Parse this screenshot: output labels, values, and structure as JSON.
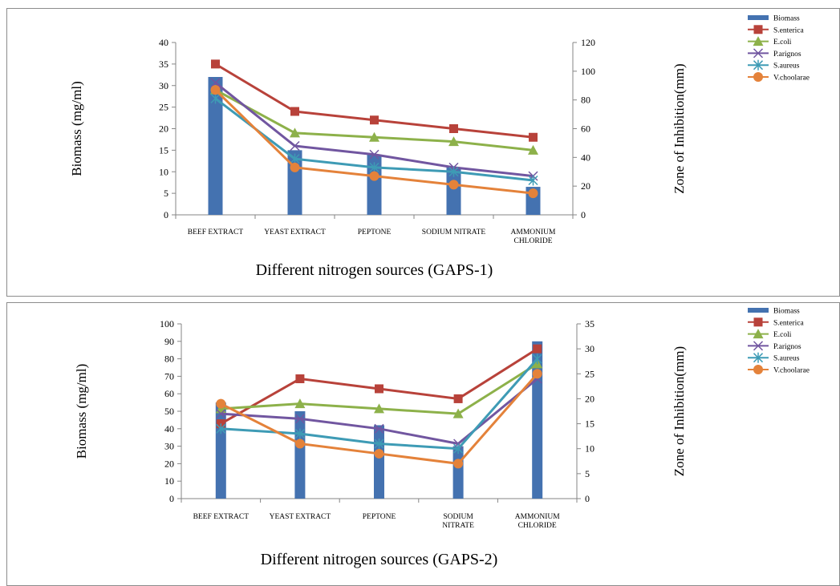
{
  "chart_data": [
    {
      "type": "bar",
      "categories": [
        "BEEF EXTRACT",
        "YEAST EXTRACT",
        "PEPTONE",
        "SODIUM NITRATE",
        "AMMONIUM CHLORIDE"
      ],
      "category_lines": [
        [
          "BEEF EXTRACT"
        ],
        [
          "YEAST EXTRACT"
        ],
        [
          "PEPTONE"
        ],
        [
          "SODIUM  NITRATE"
        ],
        [
          "AMMONIUM",
          "CHLORIDE"
        ]
      ],
      "xlabel": "Different  nitrogen sources (GAPS-1)",
      "ylabel": "Biomass (mg/ml)",
      "y2label": "Zone of  Inhibition(mm)",
      "ylim": [
        0,
        40
      ],
      "y_ticks": [
        0,
        5,
        10,
        15,
        20,
        25,
        30,
        35,
        40
      ],
      "y2lim": [
        0,
        120
      ],
      "y2_ticks": [
        0,
        20,
        40,
        60,
        80,
        100,
        120
      ],
      "legend_position": "right",
      "bar_series": {
        "name": "Biomass",
        "color": "#4472b0",
        "values": [
          32,
          15,
          14,
          11,
          6.5
        ]
      },
      "line_series": [
        {
          "name": "S.enterica",
          "color": "#b8423a",
          "marker": "square",
          "values": [
            105,
            72,
            66,
            60,
            54
          ]
        },
        {
          "name": "E.coli",
          "color": "#8db14a",
          "marker": "triangle",
          "values": [
            87,
            57,
            54,
            51,
            45
          ]
        },
        {
          "name": "P.arignos",
          "color": "#7156a0",
          "marker": "x",
          "values": [
            92,
            48,
            42,
            33,
            27
          ]
        },
        {
          "name": "S.aureus",
          "color": "#3e9bb5",
          "marker": "star",
          "values": [
            81,
            39,
            33,
            30,
            24
          ]
        },
        {
          "name": "V.choolarae",
          "color": "#e4823a",
          "marker": "circle",
          "values": [
            87,
            33,
            27,
            21,
            15
          ]
        }
      ]
    },
    {
      "type": "bar",
      "categories": [
        "BEEF EXTRACT",
        "YEAST EXTRACT",
        "PEPTONE",
        "SODIUM NITRATE",
        "AMMONIUM CHLORIDE"
      ],
      "category_lines": [
        [
          "BEEF EXTRACT"
        ],
        [
          "YEAST EXTRACT"
        ],
        [
          "PEPTONE"
        ],
        [
          "SODIUM",
          "NITRATE"
        ],
        [
          "AMMONIUM",
          "CHLORIDE"
        ]
      ],
      "xlabel": "Different nitrogen sources (GAPS-2)",
      "ylabel": "Biomass (mg/ml)",
      "y2label": "Zone of  Inhibition(mm)",
      "ylim": [
        0,
        100
      ],
      "y_ticks": [
        0,
        10,
        20,
        30,
        40,
        50,
        60,
        70,
        80,
        90,
        100
      ],
      "y2lim": [
        0,
        35
      ],
      "y2_ticks": [
        0,
        5,
        10,
        15,
        20,
        25,
        30,
        35
      ],
      "legend_position": "right",
      "bar_series": {
        "name": "Biomass",
        "color": "#4472b0",
        "values": [
          55,
          50,
          42,
          30,
          90
        ]
      },
      "line_series": [
        {
          "name": "S.enterica",
          "color": "#b8423a",
          "marker": "square",
          "values": [
            15,
            24,
            22,
            20,
            30
          ]
        },
        {
          "name": "E.coli",
          "color": "#8db14a",
          "marker": "triangle",
          "values": [
            18,
            19,
            18,
            17,
            27
          ]
        },
        {
          "name": "P.arignos",
          "color": "#7156a0",
          "marker": "x",
          "values": [
            17,
            16,
            14,
            11,
            24
          ]
        },
        {
          "name": "S.aureus",
          "color": "#3e9bb5",
          "marker": "star",
          "values": [
            14,
            13,
            11,
            10,
            28
          ]
        },
        {
          "name": "V.choolarae",
          "color": "#e4823a",
          "marker": "circle",
          "values": [
            19,
            11,
            9,
            7,
            25
          ]
        }
      ]
    }
  ]
}
